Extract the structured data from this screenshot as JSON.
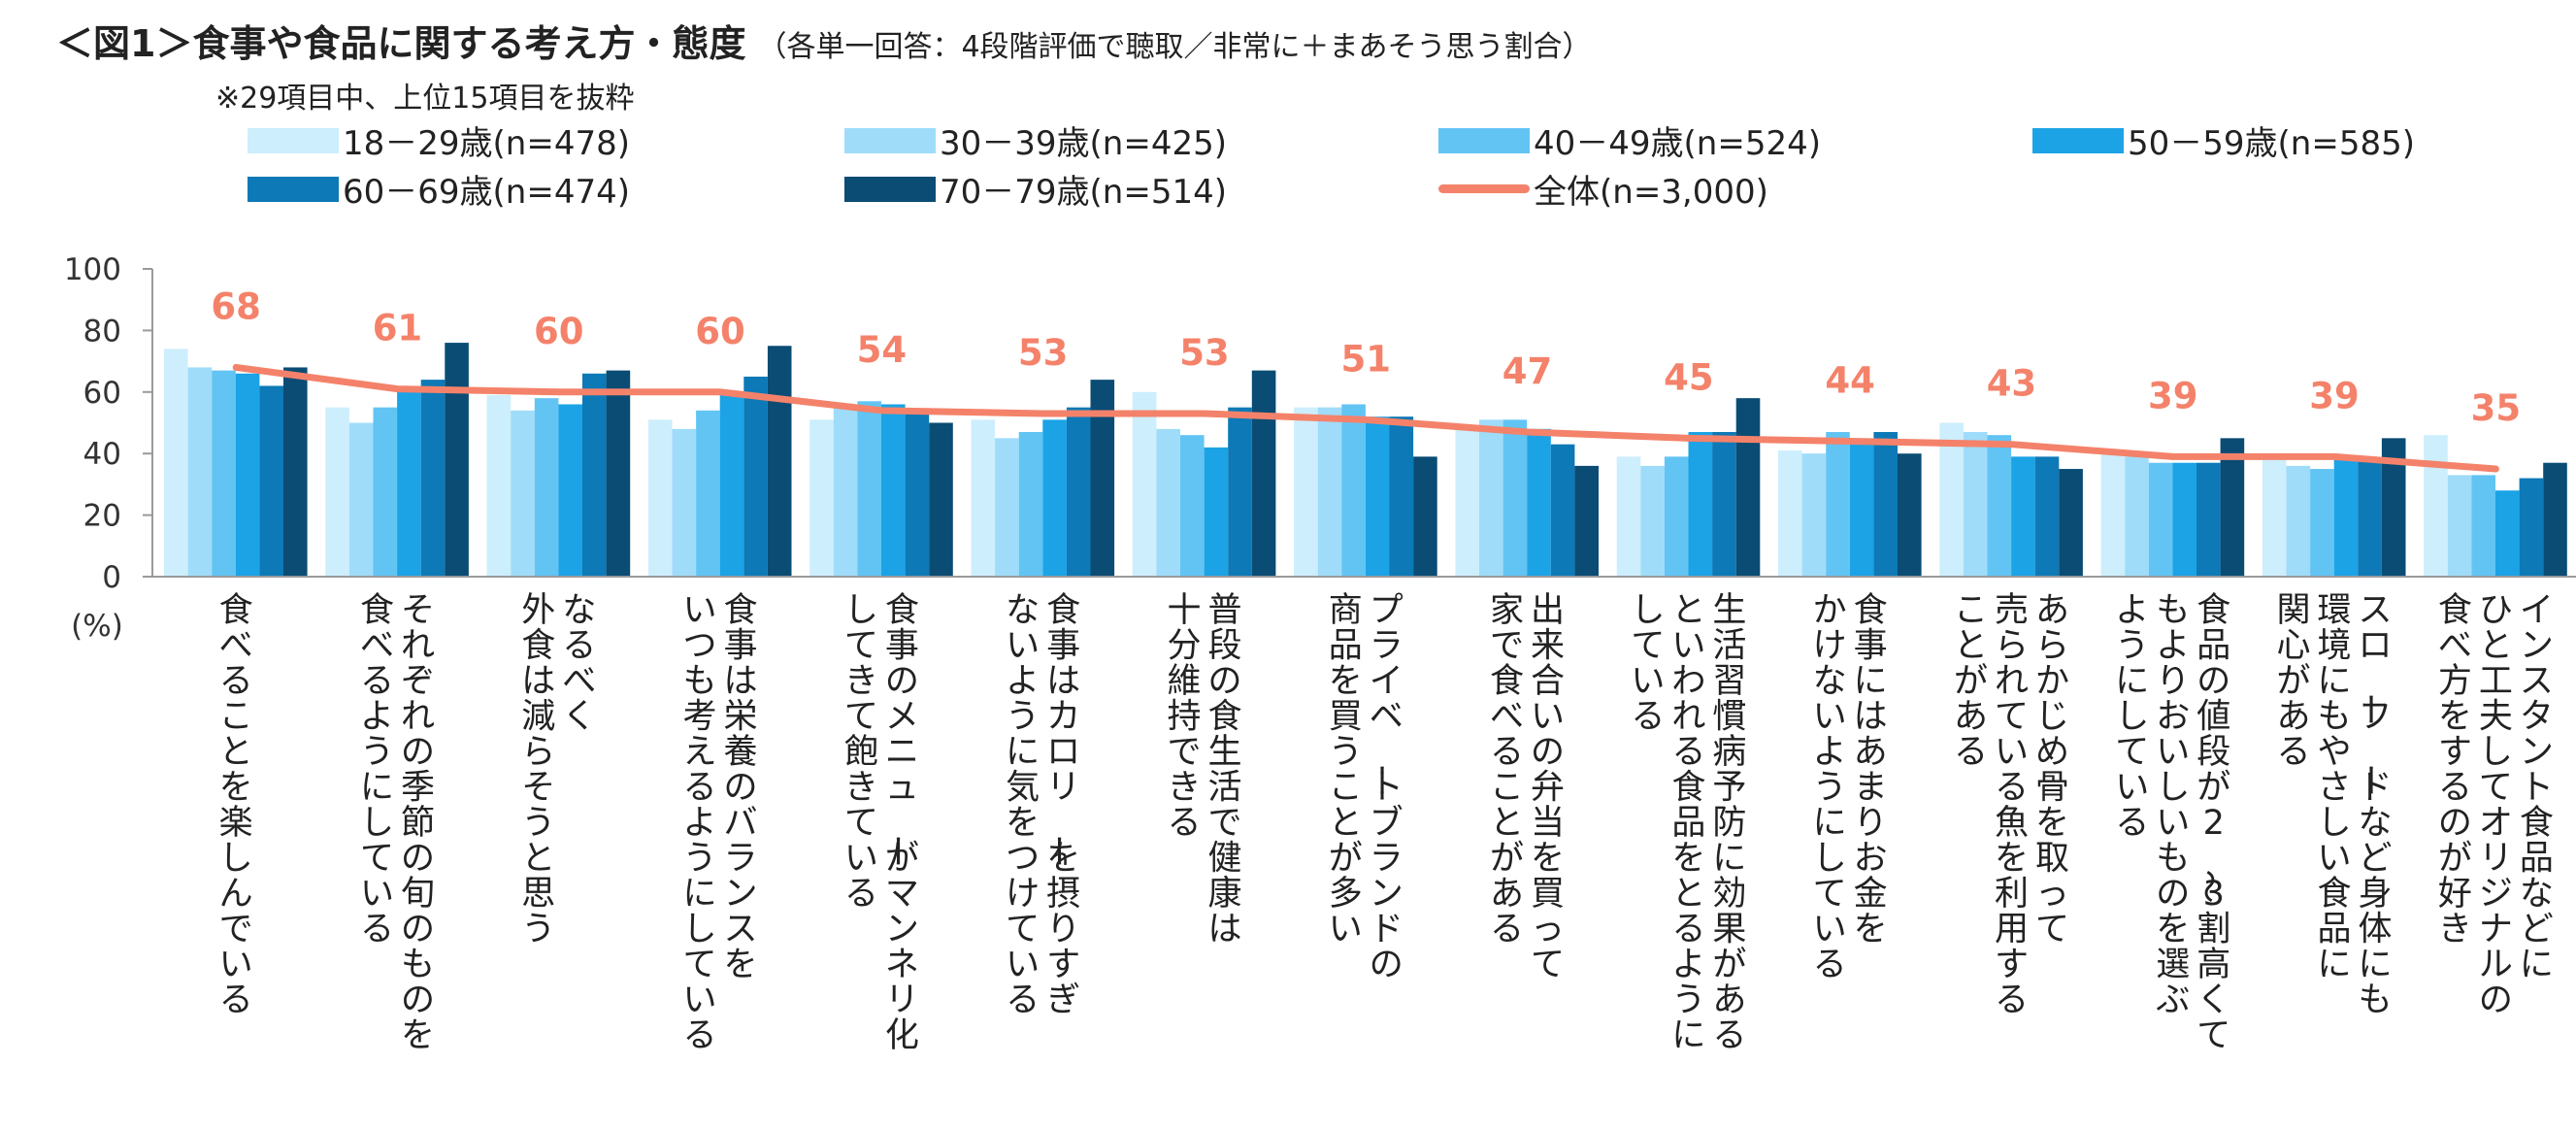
{
  "header": {
    "title": "＜図1＞食事や食品に関する考え方・態度",
    "subtitle": "（各単一回答：4段階評価で聴取／非常に＋まあそう思う割合）",
    "note": "※29項目中、上位15項目を抜粋"
  },
  "chart_data": {
    "type": "bar",
    "ylabel": "(%)",
    "ylim": [
      0,
      100
    ],
    "yticks": [
      0,
      20,
      40,
      60,
      80,
      100
    ],
    "grid": false,
    "legend_position": "top",
    "categories": [
      "食べることを楽しんでいる",
      "それぞれの季節の旬のものを食べるようにしている",
      "なるべく外食は減らそうと思う",
      "食事は栄養のバランスをいつも考えるようにしている",
      "食事のメニューがマンネリ化してきて飽きている",
      "食事はカロリーを摂りすぎないように気をつけている",
      "普段の食生活で健康は十分維持できる",
      "プライベートブランドの商品を買うことが多い",
      "出来合いの弁当を買って家で食べることがある",
      "生活習慣病予防に効果があるといわれる食品をとるようにしている",
      "食事にはあまりお金をかけないようにしている",
      "あらかじめ骨を取って売られている魚を利用することがある",
      "食品の値段が2～3割高くてもよりおいしいものを選ぶようにしている",
      "スローフードなど身体にも環境にもやさしい食品に関心がある",
      "インスタント食品などにひと工夫してオリジナルの食べ方をするのが好き"
    ],
    "category_lines": [
      [
        "食べることを楽しんでいる"
      ],
      [
        "それぞれの季節の旬のものを",
        "食べるようにしている"
      ],
      [
        "なるべく",
        "外食は減らそうと思う"
      ],
      [
        "食事は栄養のバランスを",
        "いつも考えるようにしている"
      ],
      [
        "食事のメニューがマンネリ化",
        "してきて飽きている"
      ],
      [
        "食事はカロリーを摂りすぎ",
        "ないように気をつけている"
      ],
      [
        "普段の食生活で健康は",
        "十分維持できる"
      ],
      [
        "プライベートブランドの",
        "商品を買うことが多い"
      ],
      [
        "出来合いの弁当を買って",
        "家で食べることがある"
      ],
      [
        "生活習慣病予防に効果がある",
        "といわれる食品をとるように",
        "している"
      ],
      [
        "食事にはあまりお金を",
        "かけないようにしている"
      ],
      [
        "あらかじめ骨を取って",
        "売られている魚を利用する",
        "ことがある"
      ],
      [
        "食品の値段が2～3割高くて",
        "もよりおいしいものを選ぶ",
        "ようにしている"
      ],
      [
        "スローフードなど身体にも",
        "環境にもやさしい食品に",
        "関心がある"
      ],
      [
        "インスタント食品などに",
        "ひと工夫してオリジナルの",
        "食べ方をするのが好き"
      ]
    ],
    "series": [
      {
        "name": "18－29歳(n=478)",
        "color": "#cdeefc",
        "values": [
          74,
          55,
          59,
          51,
          51,
          51,
          60,
          55,
          48,
          39,
          41,
          50,
          40,
          39,
          46
        ]
      },
      {
        "name": "30－39歳(n=425)",
        "color": "#9fdcfa",
        "values": [
          68,
          50,
          54,
          48,
          55,
          45,
          48,
          55,
          51,
          36,
          40,
          47,
          39,
          36,
          33
        ]
      },
      {
        "name": "40－49歳(n=524)",
        "color": "#62c4f3",
        "values": [
          67,
          55,
          58,
          54,
          57,
          47,
          46,
          56,
          51,
          39,
          47,
          46,
          37,
          35,
          33
        ]
      },
      {
        "name": "50－59歳(n=585)",
        "color": "#1ba3e6",
        "values": [
          66,
          60,
          56,
          59,
          56,
          51,
          42,
          52,
          48,
          47,
          43,
          39,
          37,
          39,
          28
        ]
      },
      {
        "name": "60－69歳(n=474)",
        "color": "#0d79b6",
        "values": [
          62,
          64,
          66,
          65,
          53,
          55,
          55,
          52,
          43,
          47,
          47,
          39,
          37,
          38,
          32
        ]
      },
      {
        "name": "70－79歳(n=514)",
        "color": "#0a4c74",
        "values": [
          68,
          76,
          67,
          75,
          50,
          64,
          67,
          39,
          36,
          58,
          40,
          35,
          45,
          45,
          37
        ]
      }
    ],
    "total": {
      "name": "全体(n=3,000)",
      "color": "#f4826a",
      "values": [
        68,
        61,
        60,
        60,
        54,
        53,
        53,
        51,
        47,
        45,
        44,
        43,
        39,
        39,
        35
      ]
    }
  }
}
